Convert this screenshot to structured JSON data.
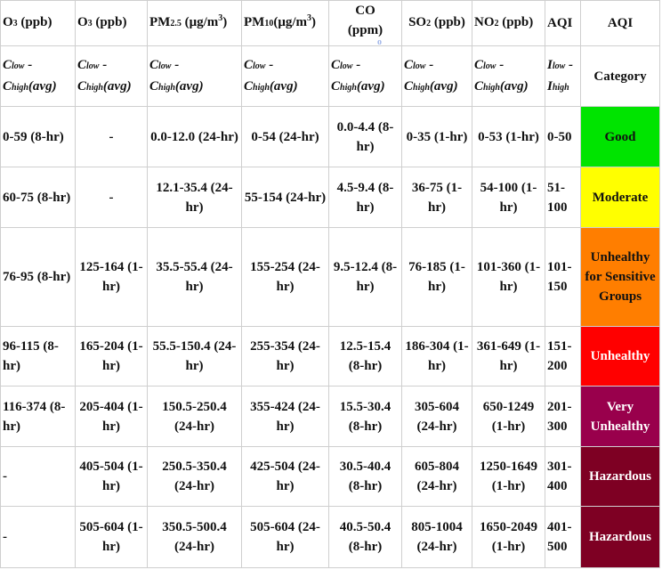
{
  "header": {
    "o3_8hr": {
      "main": "O",
      "sub": "3",
      "unit": " (ppb)"
    },
    "o3_1hr": {
      "main": "O",
      "sub": "3",
      "unit": " (ppb)"
    },
    "pm25": {
      "main": "PM",
      "sub": "2.5",
      "unit": " (μg/m",
      "sup": "3",
      "close": ")"
    },
    "pm10": {
      "main": "PM",
      "sub": "10",
      "unit": "(μg/m",
      "sup": "3",
      "close": ")"
    },
    "co": {
      "main": "CO",
      "unit": "(ppm)",
      "mark": "o"
    },
    "so2": {
      "main": "SO",
      "sub": "2",
      "unit": " (ppb)"
    },
    "no2": {
      "main": "NO",
      "sub": "2",
      "unit": " (ppb)"
    },
    "aqi_index": "AQI",
    "aqi_cat": "AQI"
  },
  "subheader": {
    "c_low": "C",
    "low": "low",
    "dash": " -",
    "c_high": "C",
    "high": "high",
    "avg": "(avg)",
    "i_low": "I",
    "i_high": "I",
    "category": "Category"
  },
  "rows": [
    {
      "o3_8hr": "0-59 (8-hr)",
      "o3_1hr": "-",
      "pm25": "0.0-12.0 (24-hr)",
      "pm10": "0-54 (24-hr)",
      "co": "0.0-4.4 (8-hr)",
      "so2": "0-35 (1-hr)",
      "no2": "0-53 (1-hr)",
      "aqi": "0-50",
      "category": "Good",
      "color": "#00e400"
    },
    {
      "o3_8hr": "60-75 (8-hr)",
      "o3_1hr": "-",
      "pm25": "12.1-35.4 (24-hr)",
      "pm10": "55-154 (24-hr)",
      "co": "4.5-9.4 (8-hr)",
      "so2": "36-75 (1-hr)",
      "no2": "54-100 (1-hr)",
      "aqi": "51-100",
      "category": "Moderate",
      "color": "#ffff00"
    },
    {
      "o3_8hr": "76-95 (8-hr)",
      "o3_1hr": "125-164 (1-hr)",
      "pm25": "35.5-55.4 (24-hr)",
      "pm10": "155-254 (24-hr)",
      "co": "9.5-12.4 (8-hr)",
      "so2": "76-185 (1-hr)",
      "no2": "101-360 (1-hr)",
      "aqi": "101-150",
      "category": "Unhealthy for Sensitive Groups",
      "color": "#ff7e00"
    },
    {
      "o3_8hr": "96-115 (8-hr)",
      "o3_1hr": "165-204 (1-hr)",
      "pm25": "55.5-150.4 (24-hr)",
      "pm10": "255-354 (24-hr)",
      "co": "12.5-15.4 (8-hr)",
      "so2": "186-304 (1-hr)",
      "no2": "361-649 (1-hr)",
      "aqi": "151-200",
      "category": "Unhealthy",
      "color": "#ff0000"
    },
    {
      "o3_8hr": "116-374 (8-hr)",
      "o3_1hr": "205-404 (1-hr)",
      "pm25": "150.5-250.4 (24-hr)",
      "pm10": "355-424 (24-hr)",
      "co": "15.5-30.4 (8-hr)",
      "so2": "305-604 (24-hr)",
      "no2": "650-1249 (1-hr)",
      "aqi": "201-300",
      "category": "Very Unhealthy",
      "color": "#99004c"
    },
    {
      "o3_8hr": "-",
      "o3_1hr": "405-504 (1-hr)",
      "pm25": "250.5-350.4 (24-hr)",
      "pm10": "425-504 (24-hr)",
      "co": "30.5-40.4 (8-hr)",
      "so2": "605-804 (24-hr)",
      "no2": "1250-1649 (1-hr)",
      "aqi": "301-400",
      "category": "Hazardous",
      "color": "#7e0023"
    },
    {
      "o3_8hr": "-",
      "o3_1hr": "505-604 (1-hr)",
      "pm25": "350.5-500.4 (24-hr)",
      "pm10": "505-604 (24-hr)",
      "co": "40.5-50.4 (8-hr)",
      "so2": "805-1004 (24-hr)",
      "no2": "1650-2049 (1-hr)",
      "aqi": "401-500",
      "category": "Hazardous",
      "color": "#7e0023"
    }
  ]
}
